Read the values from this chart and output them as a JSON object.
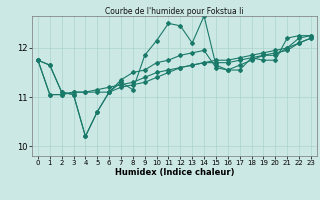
{
  "title": "Courbe de l'humidex pour Fokstua Ii",
  "xlabel": "Humidex (Indice chaleur)",
  "background_color": "#cce8e4",
  "grid_color": "#aad4cc",
  "line_color": "#1a7a6a",
  "xlim": [
    -0.5,
    23.5
  ],
  "ylim": [
    9.8,
    12.65
  ],
  "yticks": [
    10,
    11,
    12
  ],
  "xticks": [
    0,
    1,
    2,
    3,
    4,
    5,
    6,
    7,
    8,
    9,
    10,
    11,
    12,
    13,
    14,
    15,
    16,
    17,
    18,
    19,
    20,
    21,
    22,
    23
  ],
  "series": [
    [
      11.75,
      11.65,
      11.1,
      11.05,
      10.2,
      10.7,
      11.1,
      11.3,
      11.15,
      11.85,
      12.15,
      12.5,
      12.45,
      12.1,
      12.65,
      11.65,
      11.55,
      11.55,
      11.8,
      11.75,
      11.75,
      12.2,
      12.25,
      12.25
    ],
    [
      11.75,
      11.65,
      11.1,
      11.05,
      10.2,
      10.7,
      11.1,
      11.35,
      11.5,
      11.55,
      11.7,
      11.75,
      11.85,
      11.9,
      11.95,
      11.6,
      11.55,
      11.65,
      11.75,
      11.85,
      11.85,
      12.0,
      12.2,
      12.25
    ],
    [
      11.75,
      11.05,
      11.05,
      11.1,
      11.1,
      11.1,
      11.1,
      11.2,
      11.25,
      11.3,
      11.4,
      11.5,
      11.6,
      11.65,
      11.7,
      11.7,
      11.7,
      11.75,
      11.8,
      11.85,
      11.9,
      11.95,
      12.1,
      12.2
    ],
    [
      11.75,
      11.05,
      11.05,
      11.1,
      11.1,
      11.15,
      11.2,
      11.25,
      11.3,
      11.4,
      11.5,
      11.55,
      11.6,
      11.65,
      11.7,
      11.75,
      11.75,
      11.8,
      11.85,
      11.9,
      11.95,
      12.0,
      12.1,
      12.2
    ]
  ]
}
